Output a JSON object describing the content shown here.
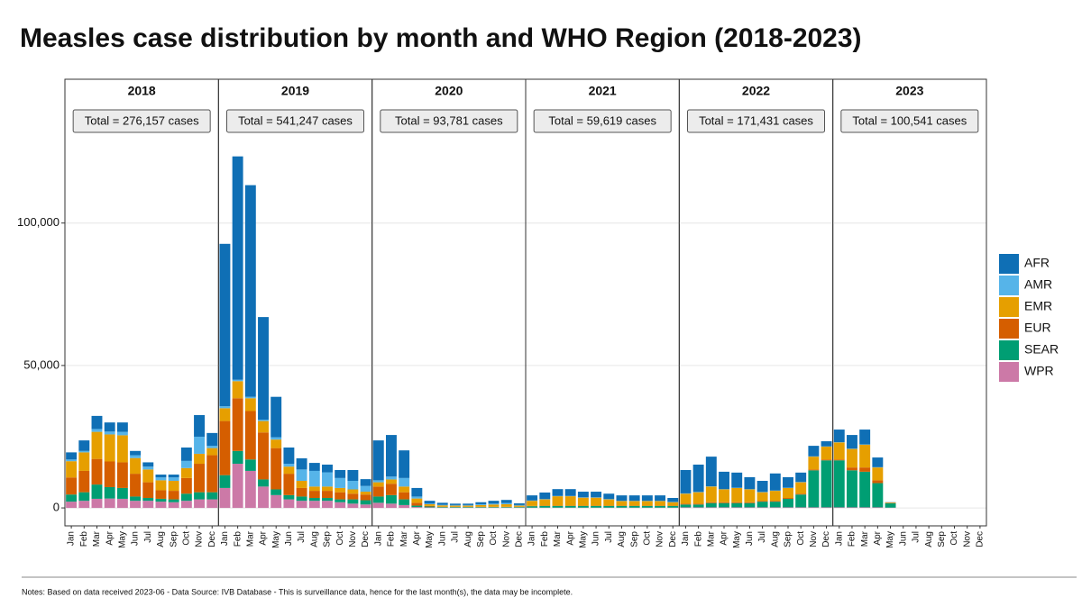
{
  "title": "Measles case distribution by month and WHO Region (2018-2023)",
  "notes": "Notes: Based on data received 2023-06 - Data Source: IVB Database - This is surveillance data, hence for the last month(s), the data may be incomplete.",
  "chart_data": [
    {
      "type": "bar",
      "title": "2018",
      "annotation": "Total = 276,157 cases",
      "categories": [
        "Jan",
        "Feb",
        "Mar",
        "Apr",
        "May",
        "Jun",
        "Jul",
        "Aug",
        "Sep",
        "Oct",
        "Nov",
        "Dec"
      ],
      "ylim": [
        -6300,
        141000
      ],
      "yticks": [
        0,
        {
          "value": 50000,
          "label": "50,000"
        },
        {
          "value": 100000,
          "label": "100,000"
        }
      ],
      "grid": true,
      "series": [
        {
          "name": "AFR",
          "color": "#0f6fb5",
          "values": [
            2500,
            3700,
            4600,
            3200,
            3300,
            1500,
            1500,
            1000,
            1000,
            4700,
            7600,
            4500
          ]
        },
        {
          "name": "AMR",
          "color": "#56b4e9",
          "values": [
            600,
            500,
            1000,
            1000,
            1200,
            1000,
            1000,
            1000,
            1200,
            2500,
            6000,
            800
          ]
        },
        {
          "name": "EMR",
          "color": "#e69f00",
          "values": [
            5700,
            6500,
            9500,
            9500,
            9500,
            5500,
            4500,
            3500,
            3500,
            3500,
            3500,
            2500
          ]
        },
        {
          "name": "EUR",
          "color": "#d55e00",
          "values": [
            6000,
            7500,
            9000,
            9000,
            9000,
            8000,
            5500,
            3000,
            3000,
            5500,
            10000,
            13000
          ]
        },
        {
          "name": "SEAR",
          "color": "#009e73",
          "values": [
            2500,
            3000,
            5000,
            4000,
            3800,
            1500,
            1000,
            1000,
            1000,
            2500,
            2500,
            2500
          ]
        },
        {
          "name": "WPR",
          "color": "#cc79a7",
          "values": [
            2200,
            2500,
            3200,
            3300,
            3200,
            2500,
            2500,
            2200,
            2000,
            2500,
            3000,
            3000
          ]
        }
      ]
    },
    {
      "type": "bar",
      "title": "2019",
      "annotation": "Total = 541,247 cases",
      "categories": [
        "Jan",
        "Feb",
        "Mar",
        "Apr",
        "May",
        "Jun",
        "Jul",
        "Aug",
        "Sep",
        "Oct",
        "Nov",
        "Dec"
      ],
      "ylim": [
        -6300,
        141000
      ],
      "yticks": [
        0,
        {
          "value": 50000,
          "label": "50,000"
        },
        {
          "value": 100000,
          "label": "100,000"
        }
      ],
      "grid": true,
      "series": [
        {
          "name": "AFR",
          "color": "#0f6fb5",
          "values": [
            57000,
            78400,
            74300,
            36000,
            14200,
            5700,
            3900,
            2800,
            2700,
            2800,
            3800,
            2400
          ]
        },
        {
          "name": "AMR",
          "color": "#56b4e9",
          "values": [
            700,
            500,
            500,
            500,
            800,
            1000,
            4000,
            5500,
            5000,
            3500,
            3000,
            2000
          ]
        },
        {
          "name": "EMR",
          "color": "#e69f00",
          "values": [
            4500,
            6000,
            4500,
            4000,
            3000,
            2500,
            2500,
            1500,
            1500,
            1500,
            1500,
            1000
          ]
        },
        {
          "name": "EUR",
          "color": "#d55e00",
          "values": [
            19000,
            18500,
            17000,
            16500,
            14500,
            7500,
            3000,
            2500,
            2500,
            2500,
            2000,
            2000
          ]
        },
        {
          "name": "SEAR",
          "color": "#009e73",
          "values": [
            4500,
            4500,
            4000,
            2500,
            2000,
            1500,
            1500,
            1000,
            1000,
            1000,
            1500,
            1500
          ]
        },
        {
          "name": "WPR",
          "color": "#cc79a7",
          "values": [
            7000,
            15500,
            13000,
            7500,
            4500,
            3000,
            2500,
            2500,
            2500,
            2000,
            1500,
            1200
          ]
        }
      ]
    },
    {
      "type": "bar",
      "title": "2020",
      "annotation": "Total =  93,781 cases",
      "categories": [
        "Jan",
        "Feb",
        "Mar",
        "Apr",
        "May",
        "Jun",
        "Jul",
        "Aug",
        "Sep",
        "Oct",
        "Nov",
        "Dec"
      ],
      "ylim": [
        -6300,
        141000
      ],
      "yticks": [
        0,
        {
          "value": 50000,
          "label": "50,000"
        },
        {
          "value": 100000,
          "label": "100,000"
        }
      ],
      "grid": true,
      "series": [
        {
          "name": "AFR",
          "color": "#0f6fb5",
          "values": [
            14000,
            14600,
            9700,
            3000,
            1000,
            700,
            500,
            500,
            700,
            1000,
            1100,
            600
          ]
        },
        {
          "name": "AMR",
          "color": "#56b4e9",
          "values": [
            700,
            1000,
            3000,
            700,
            200,
            200,
            200,
            200,
            300,
            300,
            400,
            200
          ]
        },
        {
          "name": "EMR",
          "color": "#e69f00",
          "values": [
            1500,
            1500,
            2000,
            1500,
            600,
            500,
            400,
            400,
            600,
            800,
            900,
            400
          ]
        },
        {
          "name": "EUR",
          "color": "#d55e00",
          "values": [
            3500,
            4000,
            2500,
            1000,
            200,
            100,
            100,
            100,
            100,
            100,
            100,
            100
          ]
        },
        {
          "name": "SEAR",
          "color": "#009e73",
          "values": [
            2200,
            3000,
            2000,
            500,
            300,
            200,
            200,
            200,
            200,
            200,
            200,
            200
          ]
        },
        {
          "name": "WPR",
          "color": "#cc79a7",
          "values": [
            1800,
            1500,
            1000,
            300,
            200,
            100,
            100,
            100,
            100,
            100,
            100,
            100
          ]
        }
      ]
    },
    {
      "type": "bar",
      "title": "2021",
      "annotation": "Total =  59,619 cases",
      "categories": [
        "Jan",
        "Feb",
        "Mar",
        "Apr",
        "May",
        "Jun",
        "Jul",
        "Aug",
        "Sep",
        "Oct",
        "Nov",
        "Dec"
      ],
      "ylim": [
        -6300,
        141000
      ],
      "yticks": [
        0,
        {
          "value": 50000,
          "label": "50,000"
        },
        {
          "value": 100000,
          "label": "100,000"
        }
      ],
      "grid": true,
      "series": [
        {
          "name": "AFR",
          "color": "#0f6fb5",
          "values": [
            1800,
            2300,
            2400,
            2400,
            2000,
            2000,
            1900,
            1900,
            1900,
            1900,
            1900,
            1400
          ]
        },
        {
          "name": "AMR",
          "color": "#56b4e9",
          "values": [
            100,
            100,
            100,
            100,
            100,
            100,
            100,
            100,
            100,
            100,
            100,
            100
          ]
        },
        {
          "name": "EMR",
          "color": "#e69f00",
          "values": [
            1800,
            2200,
            3300,
            3300,
            2800,
            2800,
            2200,
            1600,
            1600,
            1600,
            1600,
            1200
          ]
        },
        {
          "name": "EUR",
          "color": "#d55e00",
          "values": [
            100,
            100,
            100,
            100,
            100,
            100,
            100,
            100,
            100,
            100,
            100,
            100
          ]
        },
        {
          "name": "SEAR",
          "color": "#009e73",
          "values": [
            500,
            600,
            600,
            600,
            600,
            600,
            600,
            600,
            600,
            600,
            600,
            600
          ]
        },
        {
          "name": "WPR",
          "color": "#cc79a7",
          "values": [
            100,
            100,
            100,
            100,
            100,
            100,
            100,
            100,
            100,
            100,
            100,
            100
          ]
        }
      ]
    },
    {
      "type": "bar",
      "title": "2022",
      "annotation": "Total = 171,431 cases",
      "categories": [
        "Jan",
        "Feb",
        "Mar",
        "Apr",
        "May",
        "Jun",
        "Jul",
        "Aug",
        "Sep",
        "Oct",
        "Nov",
        "Dec"
      ],
      "ylim": [
        -6300,
        141000
      ],
      "yticks": [
        0,
        {
          "value": 50000,
          "label": "50,000"
        },
        {
          "value": 100000,
          "label": "100,000"
        }
      ],
      "grid": true,
      "series": [
        {
          "name": "AFR",
          "color": "#0f6fb5",
          "values": [
            8200,
            9600,
            10400,
            6100,
            5300,
            4200,
            3900,
            6000,
            3700,
            3300,
            3700,
            1800
          ]
        },
        {
          "name": "AMR",
          "color": "#56b4e9",
          "values": [
            100,
            100,
            100,
            100,
            100,
            100,
            100,
            100,
            100,
            100,
            100,
            100
          ]
        },
        {
          "name": "EMR",
          "color": "#e69f00",
          "values": [
            3500,
            4000,
            5500,
            4500,
            5000,
            4500,
            3000,
            3500,
            3500,
            4000,
            4500,
            4500
          ]
        },
        {
          "name": "EUR",
          "color": "#d55e00",
          "values": [
            300,
            300,
            300,
            300,
            300,
            300,
            300,
            300,
            300,
            300,
            300,
            300
          ]
        },
        {
          "name": "SEAR",
          "color": "#009e73",
          "values": [
            1000,
            1000,
            1500,
            1500,
            1500,
            1500,
            2000,
            2000,
            3000,
            4500,
            13000,
            16500
          ]
        },
        {
          "name": "WPR",
          "color": "#cc79a7",
          "values": [
            200,
            200,
            200,
            200,
            200,
            200,
            200,
            200,
            200,
            200,
            200,
            200
          ]
        }
      ]
    },
    {
      "type": "bar",
      "title": "2023",
      "annotation": "Total = 100,541 cases",
      "categories": [
        "Jan",
        "Feb",
        "Mar",
        "Apr",
        "May",
        "Jun",
        "Jul",
        "Aug",
        "Sep",
        "Oct",
        "Nov",
        "Dec"
      ],
      "ylim": [
        -6300,
        141000
      ],
      "yticks": [
        0,
        {
          "value": 50000,
          "label": "50,000"
        },
        {
          "value": 100000,
          "label": "100,000"
        }
      ],
      "grid": true,
      "series": [
        {
          "name": "AFR",
          "color": "#0f6fb5",
          "values": [
            4400,
            4800,
            5200,
            3400,
            100,
            0,
            0,
            0,
            0,
            0,
            0,
            0
          ]
        },
        {
          "name": "AMR",
          "color": "#56b4e9",
          "values": [
            100,
            100,
            100,
            100,
            0,
            0,
            0,
            0,
            0,
            0,
            0,
            0
          ]
        },
        {
          "name": "EMR",
          "color": "#e69f00",
          "values": [
            6000,
            6500,
            8000,
            4500,
            200,
            0,
            0,
            0,
            0,
            0,
            0,
            0
          ]
        },
        {
          "name": "EUR",
          "color": "#d55e00",
          "values": [
            300,
            1000,
            1500,
            1000,
            100,
            0,
            0,
            0,
            0,
            0,
            0,
            0
          ]
        },
        {
          "name": "SEAR",
          "color": "#009e73",
          "values": [
            16500,
            13000,
            12500,
            8500,
            1500,
            0,
            0,
            0,
            0,
            0,
            0,
            0
          ]
        },
        {
          "name": "WPR",
          "color": "#cc79a7",
          "values": [
            200,
            200,
            200,
            200,
            100,
            0,
            0,
            0,
            0,
            0,
            0,
            0
          ]
        }
      ]
    }
  ]
}
